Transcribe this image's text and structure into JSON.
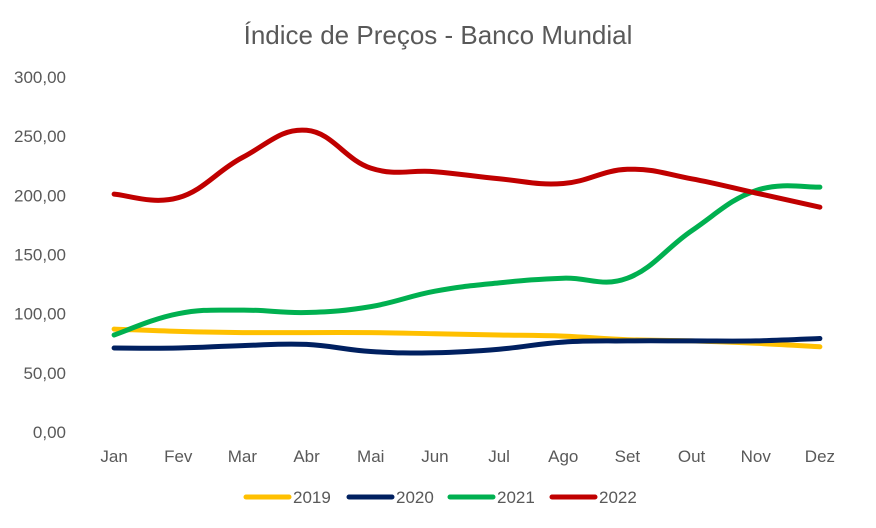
{
  "chart_data": {
    "type": "line",
    "title": "Índice de Preços - Banco Mundial",
    "xlabel": "",
    "ylabel": "",
    "categories": [
      "Jan",
      "Fev",
      "Mar",
      "Abr",
      "Mai",
      "Jun",
      "Jul",
      "Ago",
      "Set",
      "Out",
      "Nov",
      "Dez"
    ],
    "ylim": [
      0,
      300
    ],
    "yticks": [
      "0,00",
      "50,00",
      "100,00",
      "150,00",
      "200,00",
      "250,00",
      "300,00"
    ],
    "grid": false,
    "legend_position": "bottom",
    "series": [
      {
        "name": "2019",
        "color": "#FFC000",
        "values": [
          87,
          85,
          84,
          84,
          84,
          83,
          82,
          81,
          78,
          77,
          75,
          72
        ]
      },
      {
        "name": "2020",
        "color": "#002060",
        "values": [
          71,
          71,
          73,
          74,
          68,
          67,
          70,
          76,
          77,
          77,
          77,
          79
        ]
      },
      {
        "name": "2021",
        "color": "#00B050",
        "values": [
          82,
          100,
          103,
          101,
          106,
          119,
          126,
          130,
          130,
          170,
          204,
          207
        ]
      },
      {
        "name": "2022",
        "color": "#C00000",
        "values": [
          201,
          198,
          232,
          255,
          223,
          220,
          214,
          210,
          222,
          214,
          202,
          190
        ]
      }
    ]
  }
}
